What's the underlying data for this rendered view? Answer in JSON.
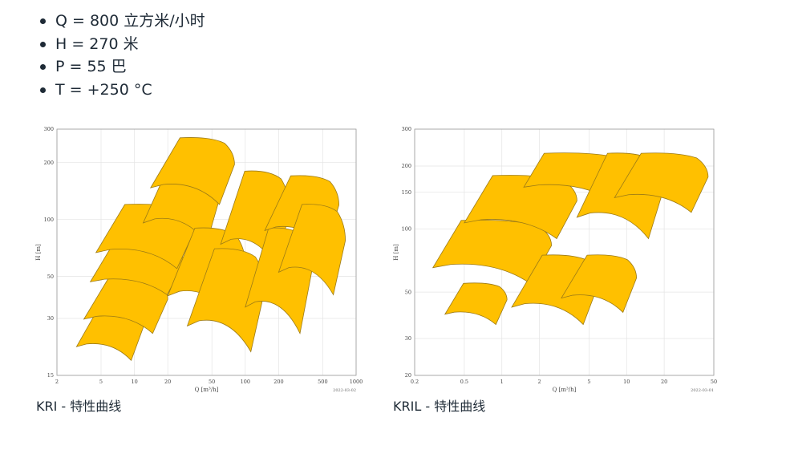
{
  "specs": [
    "Q = 800 立方米/小时",
    "H = 270 米",
    "P = 55 巴",
    "T = +250 °C"
  ],
  "colors": {
    "fill": "#FFC000",
    "stroke": "#9c7a16",
    "grid": "#e4e4e4",
    "frame": "#9a9a9a"
  },
  "charts": [
    {
      "caption": "KRI - 特性曲线",
      "date": "2022-03-02",
      "xlabel": "Q [m³/h]",
      "ylabel": "H [m]",
      "xticks": [
        "2",
        "5",
        "10",
        "20",
        "50",
        "100",
        "200",
        "500",
        "1000"
      ],
      "yticks": [
        "15",
        "30",
        "50",
        "100",
        "200",
        "300"
      ]
    },
    {
      "caption": "KRIL - 特性曲线",
      "date": "2022-03-01",
      "xlabel": "Q [m³/h]",
      "ylabel": "H [m]",
      "xticks": [
        "0.2",
        "0.5",
        "1",
        "2",
        "5",
        "10",
        "20",
        "50"
      ],
      "yticks": [
        "20",
        "30",
        "50",
        "100",
        "150",
        "200",
        "300"
      ]
    }
  ],
  "chart_data": [
    {
      "type": "area",
      "title": "",
      "xlabel": "Q [m³/h]",
      "ylabel": "H [m]",
      "xscale": "log",
      "yscale": "log",
      "xlim": [
        2,
        1000
      ],
      "ylim": [
        15,
        300
      ],
      "grid": true,
      "regions": [
        {
          "q_min": 3,
          "q_max": 12,
          "h_min": 18,
          "h_max": 35
        },
        {
          "q_min": 3.5,
          "q_max": 20,
          "h_min": 25,
          "h_max": 50
        },
        {
          "q_min": 4,
          "q_max": 28,
          "h_min": 40,
          "h_max": 75
        },
        {
          "q_min": 4.5,
          "q_max": 35,
          "h_min": 55,
          "h_max": 120
        },
        {
          "q_min": 12,
          "q_max": 60,
          "h_min": 75,
          "h_max": 200
        },
        {
          "q_min": 14,
          "q_max": 80,
          "h_min": 120,
          "h_max": 270
        },
        {
          "q_min": 20,
          "q_max": 100,
          "h_min": 30,
          "h_max": 90
        },
        {
          "q_min": 30,
          "q_max": 150,
          "h_min": 20,
          "h_max": 70
        },
        {
          "q_min": 60,
          "q_max": 250,
          "h_min": 55,
          "h_max": 180
        },
        {
          "q_min": 100,
          "q_max": 400,
          "h_min": 25,
          "h_max": 90
        },
        {
          "q_min": 150,
          "q_max": 700,
          "h_min": 70,
          "h_max": 170
        },
        {
          "q_min": 200,
          "q_max": 800,
          "h_min": 40,
          "h_max": 120
        }
      ]
    },
    {
      "type": "area",
      "title": "",
      "xlabel": "Q [m³/h]",
      "ylabel": "H [m]",
      "xscale": "log",
      "yscale": "log",
      "xlim": [
        0.2,
        50
      ],
      "ylim": [
        20,
        300
      ],
      "grid": true,
      "regions": [
        {
          "q_min": 0.35,
          "q_max": 1.1,
          "h_min": 35,
          "h_max": 55
        },
        {
          "q_min": 0.28,
          "q_max": 2.5,
          "h_min": 55,
          "h_max": 110
        },
        {
          "q_min": 0.5,
          "q_max": 4,
          "h_min": 90,
          "h_max": 180
        },
        {
          "q_min": 1.2,
          "q_max": 6,
          "h_min": 35,
          "h_max": 75
        },
        {
          "q_min": 1.5,
          "q_max": 10,
          "h_min": 140,
          "h_max": 230
        },
        {
          "q_min": 3,
          "q_max": 12,
          "h_min": 40,
          "h_max": 75
        },
        {
          "q_min": 4,
          "q_max": 20,
          "h_min": 90,
          "h_max": 230
        },
        {
          "q_min": 8,
          "q_max": 45,
          "h_min": 120,
          "h_max": 230
        }
      ]
    }
  ]
}
